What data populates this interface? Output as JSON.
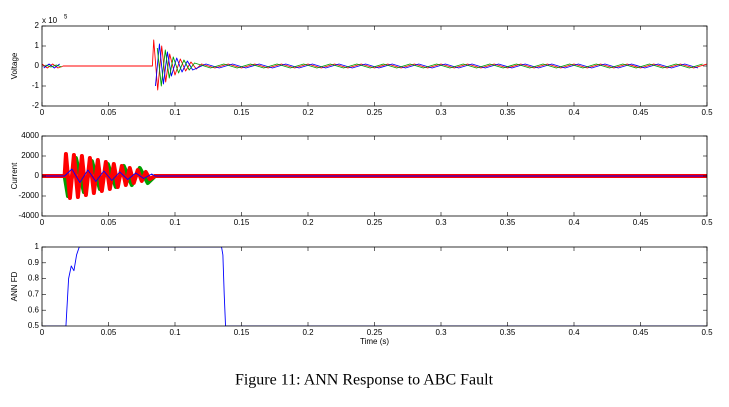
{
  "chart_data": [
    {
      "type": "line",
      "y_label": "Voltage",
      "y_multiplier": {
        "base": "x 10",
        "exponent": "5"
      },
      "xlim": [
        0,
        0.5
      ],
      "xticks": [
        0,
        0.05,
        0.1,
        0.15,
        0.2,
        0.25,
        0.3,
        0.35,
        0.4,
        0.45,
        0.5
      ],
      "ylim": [
        -2,
        2
      ],
      "yticks": [
        -2,
        -1,
        0,
        1,
        2
      ],
      "series": [
        {
          "color": "#ff0000",
          "x": [
            0,
            0.004,
            0.008,
            0.012,
            0.016,
            0.083,
            0.084,
            0.087,
            0.09,
            0.093,
            0.096,
            0.1,
            0.104,
            0.108,
            0.112,
            0.116,
            0.12,
            0.13,
            0.14,
            0.15,
            0.16,
            0.17,
            0.18,
            0.19,
            0.2,
            0.21,
            0.22,
            0.23,
            0.24,
            0.25,
            0.26,
            0.27,
            0.28,
            0.29,
            0.3,
            0.31,
            0.32,
            0.33,
            0.34,
            0.35,
            0.36,
            0.37,
            0.38,
            0.39,
            0.4,
            0.41,
            0.42,
            0.43,
            0.44,
            0.45,
            0.46,
            0.47,
            0.48,
            0.49,
            0.5
          ],
          "values": [
            0.1,
            -0.1,
            0.1,
            -0.1,
            0,
            0,
            1.3,
            -1.2,
            1.0,
            -0.8,
            0.6,
            -0.45,
            0.35,
            -0.25,
            0.2,
            -0.15,
            0.1,
            -0.1,
            0.1,
            -0.1,
            0.1,
            -0.1,
            0.1,
            -0.1,
            0.1,
            -0.1,
            0.1,
            -0.1,
            0.1,
            -0.1,
            0.1,
            -0.1,
            0.1,
            -0.1,
            0.1,
            -0.1,
            0.1,
            -0.1,
            0.1,
            -0.1,
            0.1,
            -0.1,
            0.1,
            -0.1,
            0.1,
            -0.1,
            0.1,
            -0.1,
            0.1,
            -0.1,
            0.1,
            -0.1,
            0.1,
            -0.1,
            0.1
          ]
        },
        {
          "color": "#0000ff",
          "x": [
            0.0013,
            0.0053,
            0.0093,
            0.0133,
            0.05,
            0.0853,
            0.0883,
            0.0913,
            0.0943,
            0.0973,
            0.1013,
            0.1053,
            0.1093,
            0.1133,
            0.1233,
            0.1333,
            0.1433,
            0.1533,
            0.1633,
            0.1733,
            0.1833,
            0.1933,
            0.2033,
            0.2133,
            0.2233,
            0.2333,
            0.2433,
            0.2533,
            0.2633,
            0.2733,
            0.2833,
            0.2933,
            0.3033,
            0.3133,
            0.3233,
            0.3333,
            0.3433,
            0.3533,
            0.3633,
            0.3733,
            0.3833,
            0.3933,
            0.4033,
            0.4133,
            0.4233,
            0.4333,
            0.4433,
            0.4533,
            0.4633,
            0.4733,
            0.4833,
            0.4933
          ],
          "values": [
            -0.1,
            0.1,
            -0.1,
            0.1,
            null,
            -1.0,
            1.1,
            -0.9,
            0.7,
            -0.5,
            0.4,
            -0.3,
            0.25,
            -0.2,
            0.1,
            -0.1,
            0.1,
            -0.1,
            0.1,
            -0.1,
            0.1,
            -0.1,
            0.1,
            -0.1,
            0.1,
            -0.1,
            0.1,
            -0.1,
            0.1,
            -0.1,
            0.1,
            -0.1,
            0.1,
            -0.1,
            0.1,
            -0.1,
            0.1,
            -0.1,
            0.1,
            -0.1,
            0.1,
            -0.1,
            0.1,
            -0.1,
            0.1,
            -0.1,
            0.1,
            -0.1,
            0.1,
            -0.1,
            0.1,
            -0.1
          ]
        },
        {
          "color": "#00a000",
          "x": [
            0.0027,
            0.0067,
            0.0107,
            0.0147,
            0.05,
            0.0867,
            0.0897,
            0.0927,
            0.0957,
            0.0987,
            0.1027,
            0.1067,
            0.1107,
            0.1147,
            0.1267,
            0.1367,
            0.1467,
            0.1567,
            0.1667,
            0.1767,
            0.1867,
            0.1967,
            0.2067,
            0.2167,
            0.2267,
            0.2367,
            0.2467,
            0.2567,
            0.2667,
            0.2767,
            0.2867,
            0.2967,
            0.3067,
            0.3167,
            0.3267,
            0.3367,
            0.3467,
            0.3567,
            0.3667,
            0.3767,
            0.3867,
            0.3967,
            0.4067,
            0.4167,
            0.4267,
            0.4367,
            0.4467,
            0.4567,
            0.4667,
            0.4767,
            0.4867,
            0.4967
          ],
          "values": [
            0.05,
            -0.05,
            0.05,
            -0.05,
            null,
            0.9,
            -1.0,
            0.8,
            -0.6,
            0.45,
            -0.35,
            0.3,
            -0.2,
            0.15,
            -0.1,
            0.1,
            -0.1,
            0.1,
            -0.1,
            0.1,
            -0.1,
            0.1,
            -0.1,
            0.1,
            -0.1,
            0.1,
            -0.1,
            0.1,
            -0.1,
            0.1,
            -0.1,
            0.1,
            -0.1,
            0.1,
            -0.1,
            0.1,
            -0.1,
            0.1,
            -0.1,
            0.1,
            -0.1,
            0.1,
            -0.1,
            0.1,
            -0.1,
            0.1,
            -0.1,
            0.1,
            -0.1,
            0.1,
            -0.1,
            0.1
          ]
        }
      ]
    },
    {
      "type": "line",
      "y_label": "Current",
      "xlim": [
        0,
        0.5
      ],
      "xticks": [
        0,
        0.05,
        0.1,
        0.15,
        0.2,
        0.25,
        0.3,
        0.35,
        0.4,
        0.45,
        0.5
      ],
      "ylim": [
        -4000,
        4000
      ],
      "yticks": [
        -4000,
        -2000,
        0,
        2000,
        4000
      ],
      "series": [
        {
          "color": "#00a000",
          "x": [
            0,
            0.017,
            0.0195,
            0.0255,
            0.0315,
            0.0375,
            0.0435,
            0.0495,
            0.0555,
            0.0615,
            0.0675,
            0.0735,
            0.0795,
            0.085,
            0.5
          ],
          "values": [
            0,
            0,
            -2000,
            1800,
            -1600,
            1500,
            -1300,
            1200,
            -1100,
            1000,
            -900,
            800,
            -700,
            0,
            0
          ]
        },
        {
          "color": "#ff0000",
          "x": [
            0,
            0.017,
            0.018,
            0.021,
            0.024,
            0.027,
            0.03,
            0.033,
            0.036,
            0.039,
            0.042,
            0.045,
            0.048,
            0.051,
            0.054,
            0.057,
            0.06,
            0.063,
            0.066,
            0.069,
            0.072,
            0.075,
            0.078,
            0.081,
            0.085,
            0.5
          ],
          "values": [
            0,
            0,
            2200,
            -2200,
            2100,
            -2100,
            2000,
            -1900,
            1800,
            -1700,
            1600,
            -1500,
            1400,
            -1300,
            1200,
            -1100,
            1000,
            -900,
            800,
            -700,
            600,
            -500,
            400,
            -300,
            0,
            0
          ]
        },
        {
          "color": "#0000ff",
          "x": [
            0,
            0.017,
            0.0225,
            0.0285,
            0.0345,
            0.0405,
            0.0465,
            0.0525,
            0.0585,
            0.0645,
            0.0705,
            0.0765,
            0.0825,
            0.085,
            0.5
          ],
          "values": [
            0,
            0,
            700,
            -650,
            600,
            -550,
            500,
            -450,
            400,
            -350,
            300,
            -250,
            200,
            0,
            0
          ]
        }
      ]
    },
    {
      "type": "line",
      "y_label": "ANN FD",
      "x_label": "Time (s)",
      "xlim": [
        0,
        0.5
      ],
      "xticks": [
        0,
        0.05,
        0.1,
        0.15,
        0.2,
        0.25,
        0.3,
        0.35,
        0.4,
        0.45,
        0.5
      ],
      "ylim": [
        0.5,
        1
      ],
      "yticks": [
        0.5,
        0.6,
        0.7,
        0.8,
        0.9,
        1
      ],
      "series": [
        {
          "color": "#0000ff",
          "x": [
            0,
            0.018,
            0.02,
            0.022,
            0.024,
            0.026,
            0.028,
            0.135,
            0.136,
            0.137,
            0.138,
            0.5
          ],
          "values": [
            0.5,
            0.5,
            0.8,
            0.88,
            0.85,
            0.95,
            1,
            1,
            0.95,
            0.7,
            0.5,
            0.5
          ]
        }
      ]
    }
  ],
  "caption": "Figure 11: ANN Response to ABC Fault"
}
